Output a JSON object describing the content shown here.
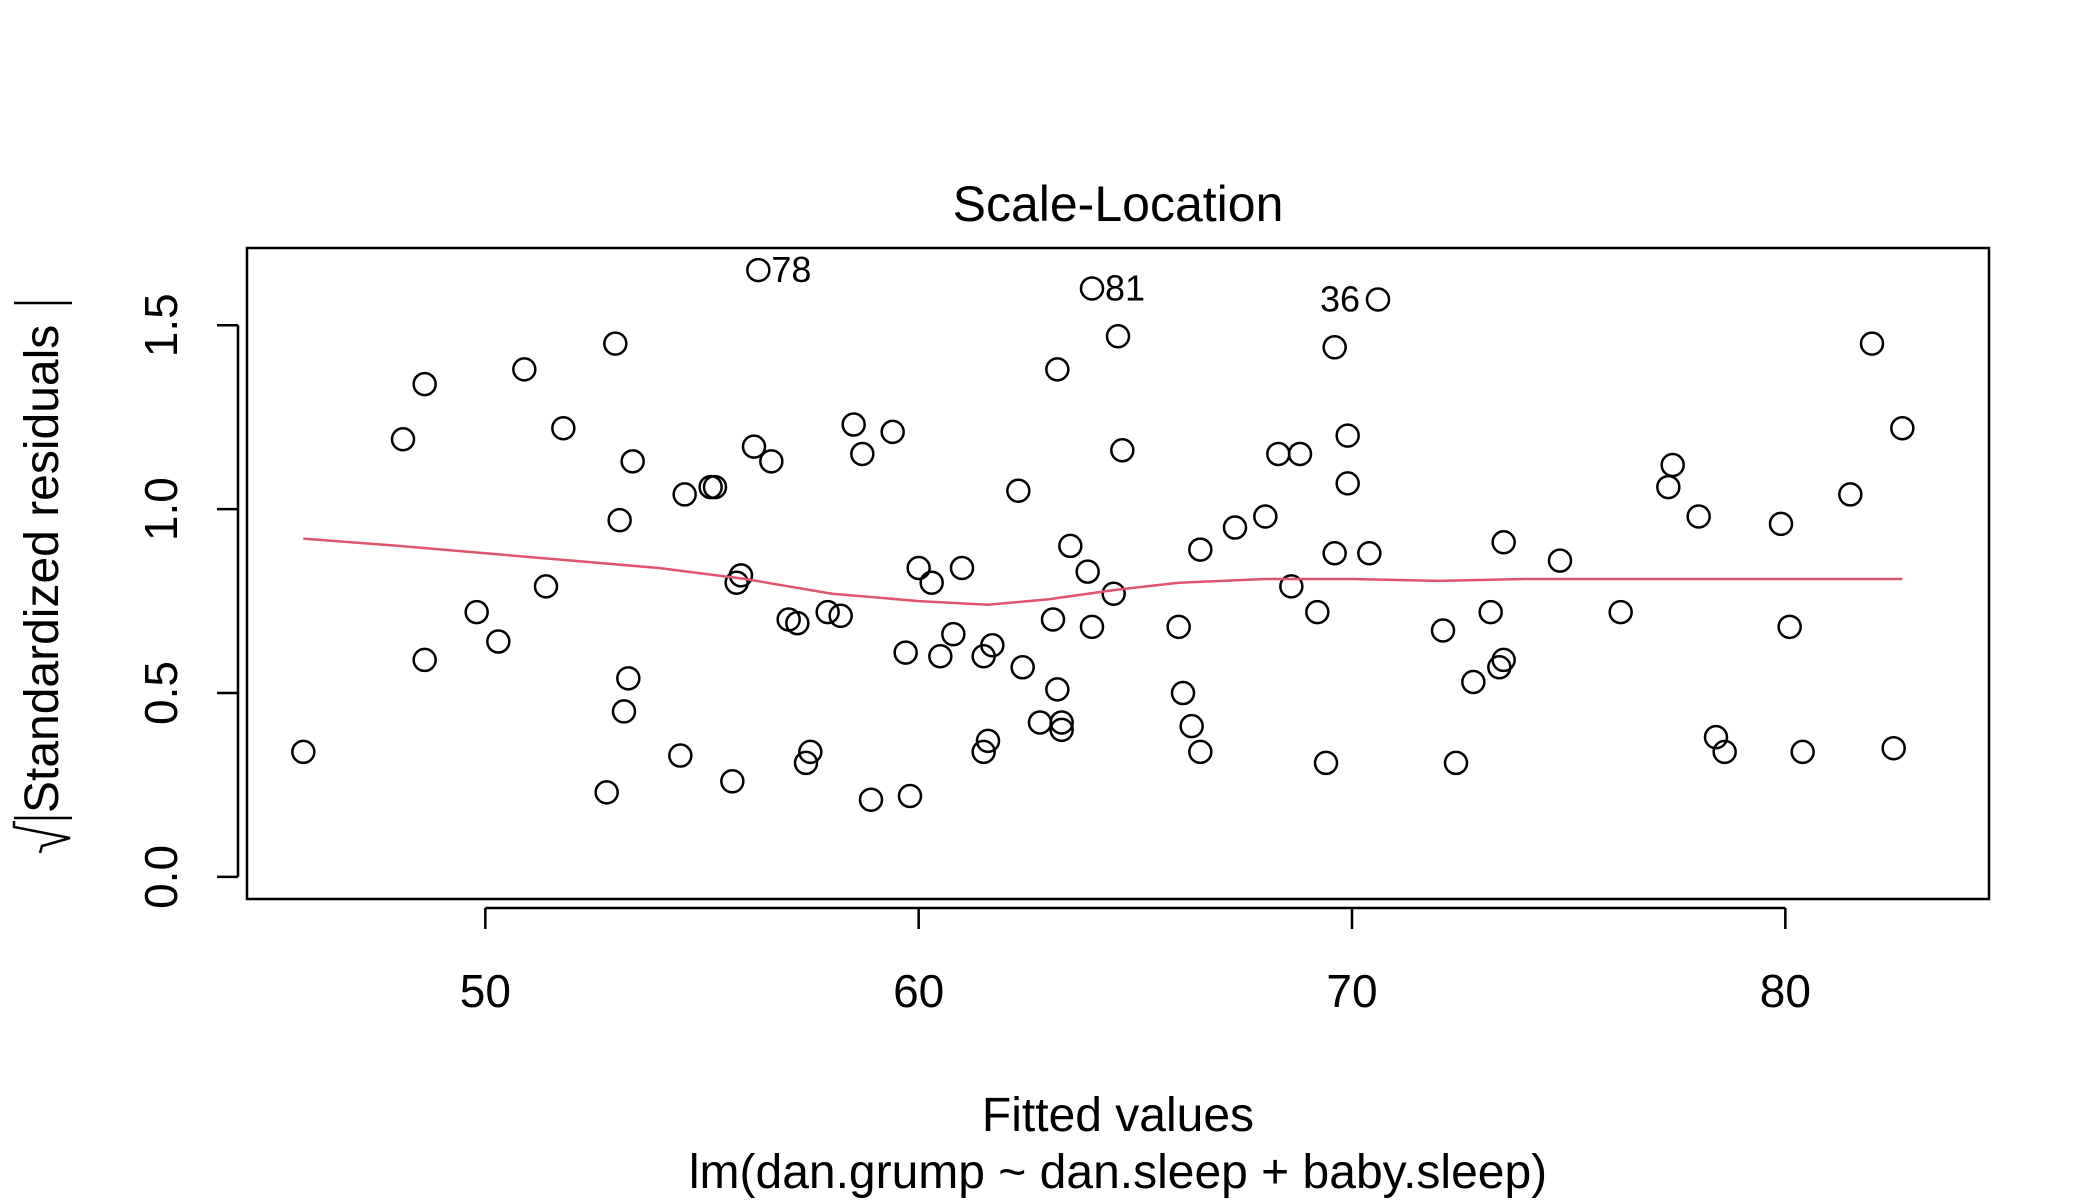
{
  "chart_data": {
    "type": "scatter",
    "title": "Scale-Location",
    "xlabel": "Fitted values",
    "subtitle": "lm(dan.grump ~ dan.sleep + baby.sleep)",
    "ylabel": "Standardized residuals",
    "xlim": [
      44.5,
      84.7
    ],
    "ylim": [
      -0.06,
      1.71
    ],
    "x_ticks": [
      50,
      60,
      70,
      80
    ],
    "y_ticks": [
      0.0,
      0.5,
      1.0,
      1.5
    ],
    "x_tick_labels": [
      "50",
      "60",
      "70",
      "80"
    ],
    "y_tick_labels": [
      "0.0",
      "0.5",
      "1.0",
      "1.5"
    ],
    "grid": false,
    "point_color": "#000000",
    "smooth_color": "#DF536B",
    "points": [
      [
        45.8,
        0.34
      ],
      [
        48.1,
        1.19
      ],
      [
        48.6,
        1.34
      ],
      [
        48.6,
        0.59
      ],
      [
        49.8,
        0.72
      ],
      [
        50.3,
        0.64
      ],
      [
        50.9,
        1.38
      ],
      [
        51.4,
        0.79
      ],
      [
        51.8,
        1.22
      ],
      [
        52.8,
        0.23
      ],
      [
        53.0,
        1.45
      ],
      [
        53.1,
        0.97
      ],
      [
        53.2,
        0.45
      ],
      [
        53.3,
        0.54
      ],
      [
        53.4,
        1.13
      ],
      [
        54.5,
        0.33
      ],
      [
        54.6,
        1.04
      ],
      [
        55.2,
        1.06
      ],
      [
        55.3,
        1.06
      ],
      [
        55.7,
        0.26
      ],
      [
        55.8,
        0.8
      ],
      [
        55.9,
        0.82
      ],
      [
        56.2,
        1.17
      ],
      [
        56.3,
        1.65
      ],
      [
        56.6,
        1.13
      ],
      [
        57.0,
        0.7
      ],
      [
        57.2,
        0.69
      ],
      [
        57.4,
        0.31
      ],
      [
        57.5,
        0.34
      ],
      [
        57.9,
        0.72
      ],
      [
        58.2,
        0.71
      ],
      [
        58.5,
        1.23
      ],
      [
        58.7,
        1.15
      ],
      [
        58.9,
        0.21
      ],
      [
        59.4,
        1.21
      ],
      [
        59.7,
        0.61
      ],
      [
        59.8,
        0.22
      ],
      [
        60.0,
        0.84
      ],
      [
        60.3,
        0.8
      ],
      [
        60.5,
        0.6
      ],
      [
        60.8,
        0.66
      ],
      [
        61.0,
        0.84
      ],
      [
        61.5,
        0.6
      ],
      [
        61.5,
        0.34
      ],
      [
        61.6,
        0.37
      ],
      [
        61.7,
        0.63
      ],
      [
        62.3,
        1.05
      ],
      [
        62.4,
        0.57
      ],
      [
        62.8,
        0.42
      ],
      [
        63.1,
        0.7
      ],
      [
        63.2,
        1.38
      ],
      [
        63.2,
        0.51
      ],
      [
        63.3,
        0.42
      ],
      [
        63.3,
        0.4
      ],
      [
        63.5,
        0.9
      ],
      [
        63.9,
        0.83
      ],
      [
        64.0,
        1.6
      ],
      [
        64.0,
        0.68
      ],
      [
        64.5,
        0.77
      ],
      [
        64.6,
        1.47
      ],
      [
        64.7,
        1.16
      ],
      [
        66.0,
        0.68
      ],
      [
        66.1,
        0.5
      ],
      [
        66.3,
        0.41
      ],
      [
        66.5,
        0.89
      ],
      [
        66.5,
        0.34
      ],
      [
        67.3,
        0.95
      ],
      [
        68.0,
        0.98
      ],
      [
        68.3,
        1.15
      ],
      [
        68.6,
        0.79
      ],
      [
        68.8,
        1.15
      ],
      [
        69.2,
        0.72
      ],
      [
        69.4,
        0.31
      ],
      [
        69.6,
        1.44
      ],
      [
        69.6,
        0.88
      ],
      [
        69.9,
        1.2
      ],
      [
        69.9,
        1.07
      ],
      [
        70.4,
        0.88
      ],
      [
        70.6,
        1.57
      ],
      [
        72.1,
        0.67
      ],
      [
        72.4,
        0.31
      ],
      [
        72.8,
        0.53
      ],
      [
        73.2,
        0.72
      ],
      [
        73.4,
        0.57
      ],
      [
        73.5,
        0.59
      ],
      [
        73.5,
        0.91
      ],
      [
        74.8,
        0.86
      ],
      [
        76.2,
        0.72
      ],
      [
        77.3,
        1.06
      ],
      [
        77.4,
        1.12
      ],
      [
        78.0,
        0.98
      ],
      [
        78.4,
        0.38
      ],
      [
        78.6,
        0.34
      ],
      [
        79.9,
        0.96
      ],
      [
        80.1,
        0.68
      ],
      [
        80.4,
        0.34
      ],
      [
        81.5,
        1.04
      ],
      [
        82.0,
        1.45
      ],
      [
        82.5,
        0.35
      ],
      [
        82.7,
        1.22
      ]
    ],
    "labeled_points": [
      {
        "label": "78",
        "x": 56.3,
        "y": 1.65
      },
      {
        "label": "81",
        "x": 64.0,
        "y": 1.6
      },
      {
        "label": "36",
        "x": 70.6,
        "y": 1.57
      }
    ],
    "smooth_line": [
      [
        45.8,
        0.92
      ],
      [
        48.0,
        0.9
      ],
      [
        50.0,
        0.88
      ],
      [
        52.0,
        0.86
      ],
      [
        54.0,
        0.84
      ],
      [
        56.0,
        0.81
      ],
      [
        58.0,
        0.77
      ],
      [
        60.0,
        0.75
      ],
      [
        61.6,
        0.74
      ],
      [
        63.0,
        0.755
      ],
      [
        64.5,
        0.78
      ],
      [
        66.0,
        0.8
      ],
      [
        68.0,
        0.81
      ],
      [
        70.0,
        0.81
      ],
      [
        72.0,
        0.805
      ],
      [
        74.0,
        0.81
      ],
      [
        76.0,
        0.81
      ],
      [
        78.0,
        0.81
      ],
      [
        80.0,
        0.81
      ],
      [
        82.7,
        0.81
      ]
    ]
  }
}
